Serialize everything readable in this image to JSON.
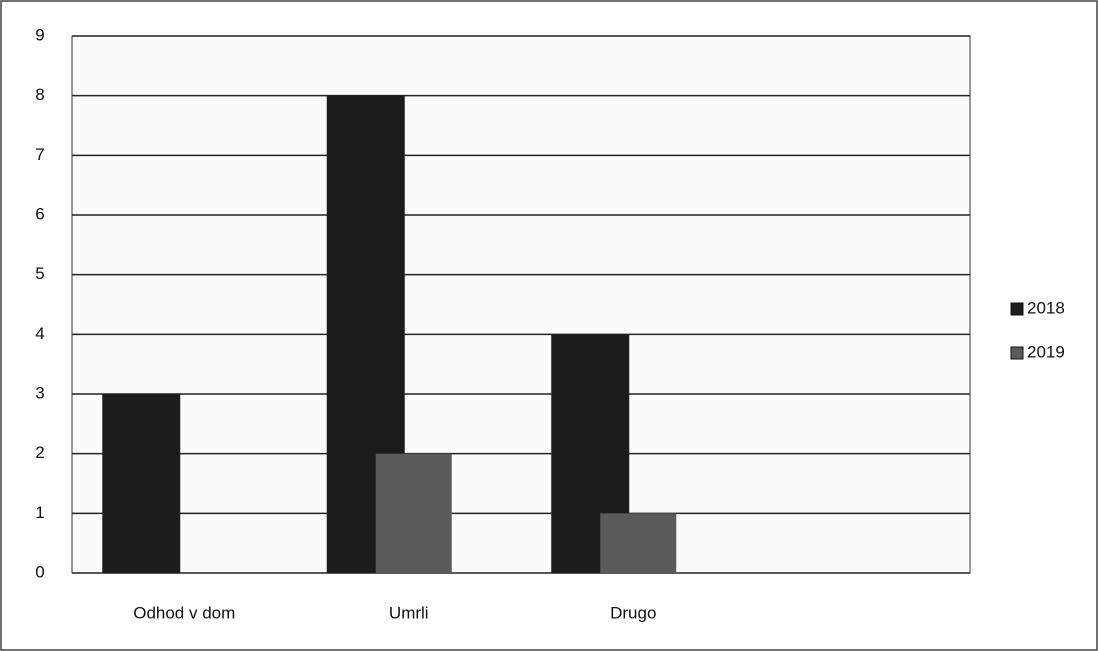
{
  "chart_data": {
    "type": "bar",
    "categories": [
      "Odhod v dom",
      "Umrli",
      "Drugo"
    ],
    "series": [
      {
        "name": "2018",
        "color": "#1c1c1c",
        "values": [
          3,
          8,
          4
        ]
      },
      {
        "name": "2019",
        "color": "#5a5a5a",
        "values": [
          0,
          2,
          1
        ]
      }
    ],
    "ylim": [
      0,
      9
    ],
    "yticks": [
      0,
      1,
      2,
      3,
      4,
      5,
      6,
      7,
      8,
      9
    ],
    "grid": true,
    "legend": "right"
  }
}
